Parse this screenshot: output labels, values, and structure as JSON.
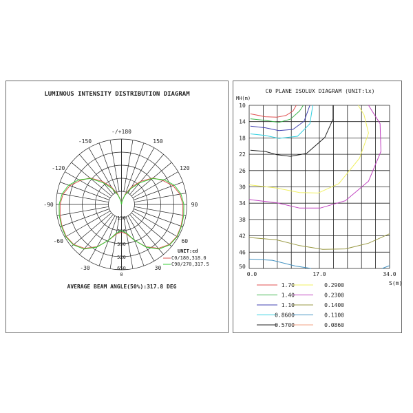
{
  "chart_data": [
    {
      "type": "polar",
      "title": "LUMINOUS INTENSITY DISTRIBUTION DIAGRAM",
      "angle_labels": [
        "-/+180",
        "150",
        "120",
        "90",
        "60",
        "30",
        "0",
        "-30",
        "-60",
        "-90",
        "-120",
        "-150"
      ],
      "radial_ticks": [
        130,
        260,
        390,
        520,
        650
      ],
      "rmax": 650,
      "unit_label": "UNIT:cd",
      "footer": "AVERAGE BEAM ANGLE(50%):317.8 DEG",
      "angles": [
        0,
        10,
        20,
        30,
        40,
        50,
        60,
        70,
        80,
        90,
        100,
        110,
        120,
        130,
        140,
        150,
        160,
        170,
        180
      ],
      "series": [
        {
          "name": "C0/180,318.0",
          "color": "#d9534f",
          "values": [
            275,
            300,
            380,
            485,
            570,
            620,
            635,
            630,
            620,
            610,
            590,
            545,
            475,
            410,
            300,
            200,
            110,
            40,
            0
          ]
        },
        {
          "name": "C90/270,317.5",
          "color": "#33cc33",
          "values": [
            260,
            290,
            380,
            490,
            580,
            625,
            640,
            635,
            628,
            620,
            600,
            560,
            490,
            400,
            280,
            180,
            95,
            35,
            0
          ]
        }
      ]
    },
    {
      "type": "contour",
      "title": "C0 PLANE ISOLUX DIAGRAM (UNIT:lx)",
      "ylabel": "MH(m)",
      "xlabel": "S(m)",
      "x_ticks": [
        "0.0",
        "17.0",
        "34.0"
      ],
      "y_ticks": [
        "10",
        "14",
        "18",
        "22",
        "26",
        "30",
        "34",
        "38",
        "42",
        "46",
        "50"
      ],
      "xlim": [
        0,
        34
      ],
      "ylim": [
        10,
        50
      ],
      "grid": true,
      "levels": [
        {
          "label": "1.70",
          "color": "#e05050",
          "points": [
            [
              0.3,
              12.1
            ],
            [
              3.9,
              12.8
            ],
            [
              6.7,
              12.9
            ],
            [
              8.9,
              12.5
            ],
            [
              10.6,
              11.4
            ],
            [
              11.4,
              10
            ]
          ]
        },
        {
          "label": "1.40",
          "color": "#3cb44b",
          "points": [
            [
              0.3,
              13.3
            ],
            [
              3.9,
              13.7
            ],
            [
              7.2,
              14.2
            ],
            [
              10,
              13.4
            ],
            [
              12.2,
              11.4
            ],
            [
              13.1,
              10
            ]
          ]
        },
        {
          "label": "1.10",
          "color": "#4040b0",
          "points": [
            [
              0.3,
              15.1
            ],
            [
              3.9,
              15.5
            ],
            [
              7.2,
              16.2
            ],
            [
              10.6,
              15.9
            ],
            [
              13.3,
              13.9
            ],
            [
              14.7,
              10
            ]
          ]
        },
        {
          "label": "0.8600",
          "color": "#30d0e0",
          "points": [
            [
              0.3,
              17
            ],
            [
              3.9,
              17.4
            ],
            [
              7.2,
              18.1
            ],
            [
              11.7,
              17.6
            ],
            [
              14.7,
              14.5
            ],
            [
              15.4,
              10
            ]
          ]
        },
        {
          "label": "0.5700",
          "color": "#222222",
          "points": [
            [
              0.3,
              21
            ],
            [
              3.9,
              21.3
            ],
            [
              6.7,
              22.1
            ],
            [
              10,
              22.5
            ],
            [
              13.9,
              21.8
            ],
            [
              18.3,
              17.9
            ],
            [
              20.3,
              13.4
            ],
            [
              20.3,
              10
            ]
          ]
        },
        {
          "label": "0.2900",
          "color": "#f0f060",
          "points": [
            [
              0,
              29.5
            ],
            [
              6.7,
              30.3
            ],
            [
              12.2,
              31.4
            ],
            [
              16.7,
              31.5
            ],
            [
              21.7,
              29.2
            ],
            [
              26.7,
              23
            ],
            [
              28.9,
              16.8
            ],
            [
              27.8,
              12.3
            ],
            [
              26.4,
              10
            ]
          ]
        },
        {
          "label": "0.2300",
          "color": "#c040c0",
          "points": [
            [
              0,
              33.1
            ],
            [
              6.7,
              33.9
            ],
            [
              12.2,
              35.2
            ],
            [
              17.2,
              35.2
            ],
            [
              23.3,
              33.4
            ],
            [
              28.9,
              28.6
            ],
            [
              31.9,
              21.3
            ],
            [
              31.7,
              14.5
            ],
            [
              28.9,
              10
            ]
          ]
        },
        {
          "label": "0.1400",
          "color": "#999944",
          "points": [
            [
              0,
              42.4
            ],
            [
              6.7,
              43
            ],
            [
              12.2,
              44.4
            ],
            [
              17.8,
              45.3
            ],
            [
              23.3,
              45.2
            ],
            [
              28.9,
              43.8
            ],
            [
              34,
              41.5
            ]
          ]
        },
        {
          "label": "0.1100",
          "color": "#4090c0",
          "points": [
            [
              0,
              47.7
            ],
            [
              5.6,
              48
            ],
            [
              11.1,
              49.4
            ],
            [
              15,
              50
            ]
          ],
          "extra": [
            [
              32.2,
              50
            ],
            [
              34,
              49.3
            ]
          ]
        },
        {
          "label": "0.0860",
          "color": "#f0a080",
          "points": []
        }
      ]
    }
  ]
}
